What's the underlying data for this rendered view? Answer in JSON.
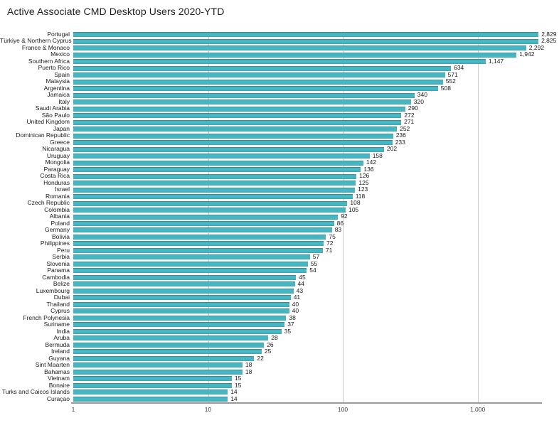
{
  "title": "Active Associate CMD Desktop Users 2020-YTD",
  "colors": {
    "bar": "#46b6c2",
    "gridline": "#cccccc",
    "axis_line": "#9a9a9a",
    "tick_text": "#424242",
    "label_text": "#1a1a1a"
  },
  "chart_data": {
    "type": "bar",
    "orientation": "horizontal",
    "x_scale": "log",
    "grid": true,
    "legend": "none",
    "title": "Active Associate CMD Desktop Users 2020-YTD",
    "xlabel": "",
    "ylabel": "",
    "x_range": [
      1,
      3000
    ],
    "x_tick_values": [
      1,
      10,
      100,
      1000
    ],
    "x_ticks": [
      "1",
      "10",
      "100",
      "1,000"
    ],
    "categories": [
      "Portugal",
      "Türkiye & Northern Cyprus",
      "France & Monaco",
      "Mexico",
      "Southern Africa",
      "Puerto Rico",
      "Spain",
      "Malaysia",
      "Argentina",
      "Jamaica",
      "Italy",
      "Saudi Arabia",
      "São Paulo",
      "United Kingdom",
      "Japan",
      "Dominican Republic",
      "Greece",
      "Nicaragua",
      "Uruguay",
      "Mongolia",
      "Paraguay",
      "Costa Rica",
      "Honduras",
      "Israel",
      "Romania",
      "Czech Republic",
      "Colombia",
      "Albania",
      "Poland",
      "Germany",
      "Bolivia",
      "Philippines",
      "Peru",
      "Serbia",
      "Slovenia",
      "Panama",
      "Cambodia",
      "Belize",
      "Luxembourg",
      "Dubai",
      "Thailand",
      "Cyprus",
      "French Polynesia",
      "Suriname",
      "India",
      "Aruba",
      "Bermuda",
      "Ireland",
      "Guyana",
      "Sint Maarten",
      "Bahamas",
      "Vietnam",
      "Bonaire",
      "Turks and Caicos Islands",
      "Curaçao"
    ],
    "values": [
      2829,
      2825,
      2292,
      1942,
      1147,
      634,
      571,
      552,
      508,
      340,
      320,
      290,
      272,
      271,
      252,
      236,
      233,
      202,
      158,
      142,
      136,
      126,
      125,
      123,
      118,
      108,
      105,
      92,
      86,
      83,
      75,
      72,
      71,
      57,
      55,
      54,
      45,
      44,
      43,
      41,
      40,
      40,
      38,
      37,
      35,
      28,
      26,
      25,
      22,
      18,
      18,
      15,
      15,
      14,
      14
    ],
    "value_labels": [
      "2,829",
      "2,825",
      "2,292",
      "1,942",
      "1,147",
      "634",
      "571",
      "552",
      "508",
      "340",
      "320",
      "290",
      "272",
      "271",
      "252",
      "236",
      "233",
      "202",
      "158",
      "142",
      "136",
      "126",
      "125",
      "123",
      "118",
      "108",
      "105",
      "92",
      "86",
      "83",
      "75",
      "72",
      "71",
      "57",
      "55",
      "54",
      "45",
      "44",
      "43",
      "41",
      "40",
      "40",
      "38",
      "37",
      "35",
      "28",
      "26",
      "25",
      "22",
      "18",
      "18",
      "15",
      "15",
      "14",
      "14"
    ]
  }
}
